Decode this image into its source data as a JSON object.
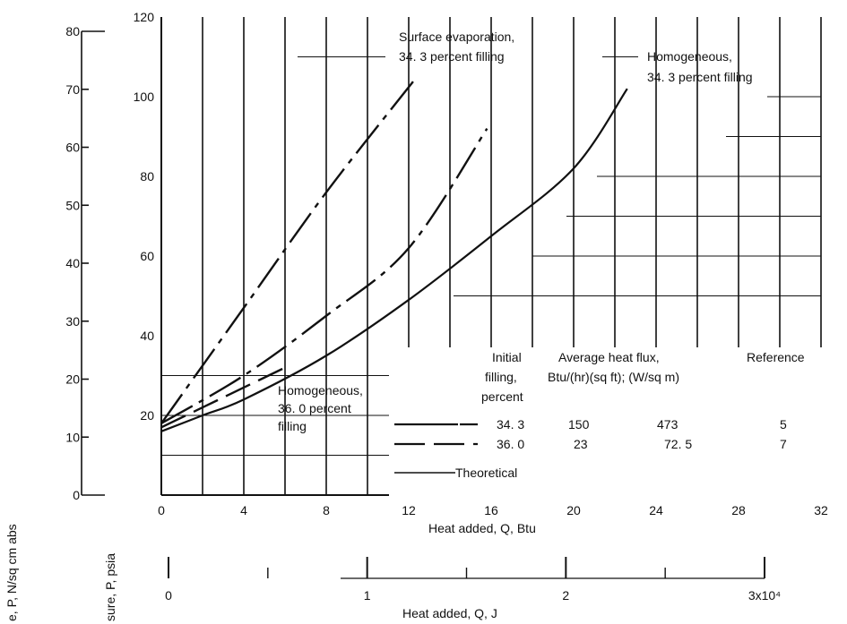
{
  "chart_data": {
    "type": "line",
    "x_axis_btu": {
      "label": "Heat added, Q, Btu",
      "range": [
        0,
        32
      ],
      "ticks": [
        "0",
        "4",
        "8",
        "12",
        "16",
        "20",
        "24",
        "28",
        "32"
      ]
    },
    "x_axis_j": {
      "label": "Heat added, Q, J",
      "range": [
        0,
        30000
      ],
      "ticks": [
        "0",
        "1",
        "2",
        "3x10⁴"
      ]
    },
    "y_axis_psia": {
      "label": "sure, P, psia",
      "range": [
        0,
        120
      ],
      "ticks": [
        "20",
        "40",
        "60",
        "80",
        "100",
        "120"
      ]
    },
    "y_axis_ncm": {
      "label": "e, P, N/sq cm abs",
      "range": [
        0,
        80
      ],
      "ticks": [
        "0",
        "10",
        "20",
        "30",
        "40",
        "50",
        "60",
        "70",
        "80"
      ]
    },
    "series": [
      {
        "id": "surface",
        "style": "long-short-dash",
        "points": [
          [
            0,
            18
          ],
          [
            4,
            47
          ],
          [
            8,
            76
          ],
          [
            12.4,
            105
          ]
        ]
      },
      {
        "id": "homog343",
        "style": "long-short-dash",
        "points": [
          [
            0,
            18
          ],
          [
            4,
            30
          ],
          [
            8,
            45
          ],
          [
            12,
            62
          ],
          [
            15.8,
            92
          ]
        ]
      },
      {
        "id": "homog360",
        "style": "long-dash",
        "points": [
          [
            0,
            17
          ],
          [
            2,
            22
          ],
          [
            4,
            27
          ],
          [
            6,
            32
          ]
        ]
      },
      {
        "id": "theoretical",
        "style": "solid",
        "points": [
          [
            0,
            16
          ],
          [
            2,
            20
          ],
          [
            4,
            24
          ],
          [
            8,
            35
          ],
          [
            12,
            49
          ],
          [
            16,
            65
          ],
          [
            20,
            82
          ],
          [
            22.6,
            102
          ]
        ]
      }
    ],
    "annotations": {
      "surface": [
        "Surface evaporation,",
        "34. 3 percent filling"
      ],
      "homog343": [
        "Homogeneous,",
        "34. 3 percent filling"
      ],
      "homog360": [
        "Homogeneous,",
        "36. 0 percent",
        "filling"
      ]
    },
    "legend": {
      "headers": {
        "filling": [
          "Initial",
          "filling,",
          "percent"
        ],
        "flux": [
          "Average heat flux,",
          "Btu/(hr)(sq ft); (W/sq m)"
        ],
        "reference": "Reference"
      },
      "rows": [
        {
          "style": "long-short-dash",
          "filling": "34. 3",
          "flux_btu": "150",
          "flux_w": "473",
          "reference": "5"
        },
        {
          "style": "long-dash",
          "filling": "36. 0",
          "flux_btu": "23",
          "flux_w": "72. 5",
          "reference": "7"
        },
        {
          "style": "solid",
          "label": "Theoretical"
        }
      ]
    }
  }
}
